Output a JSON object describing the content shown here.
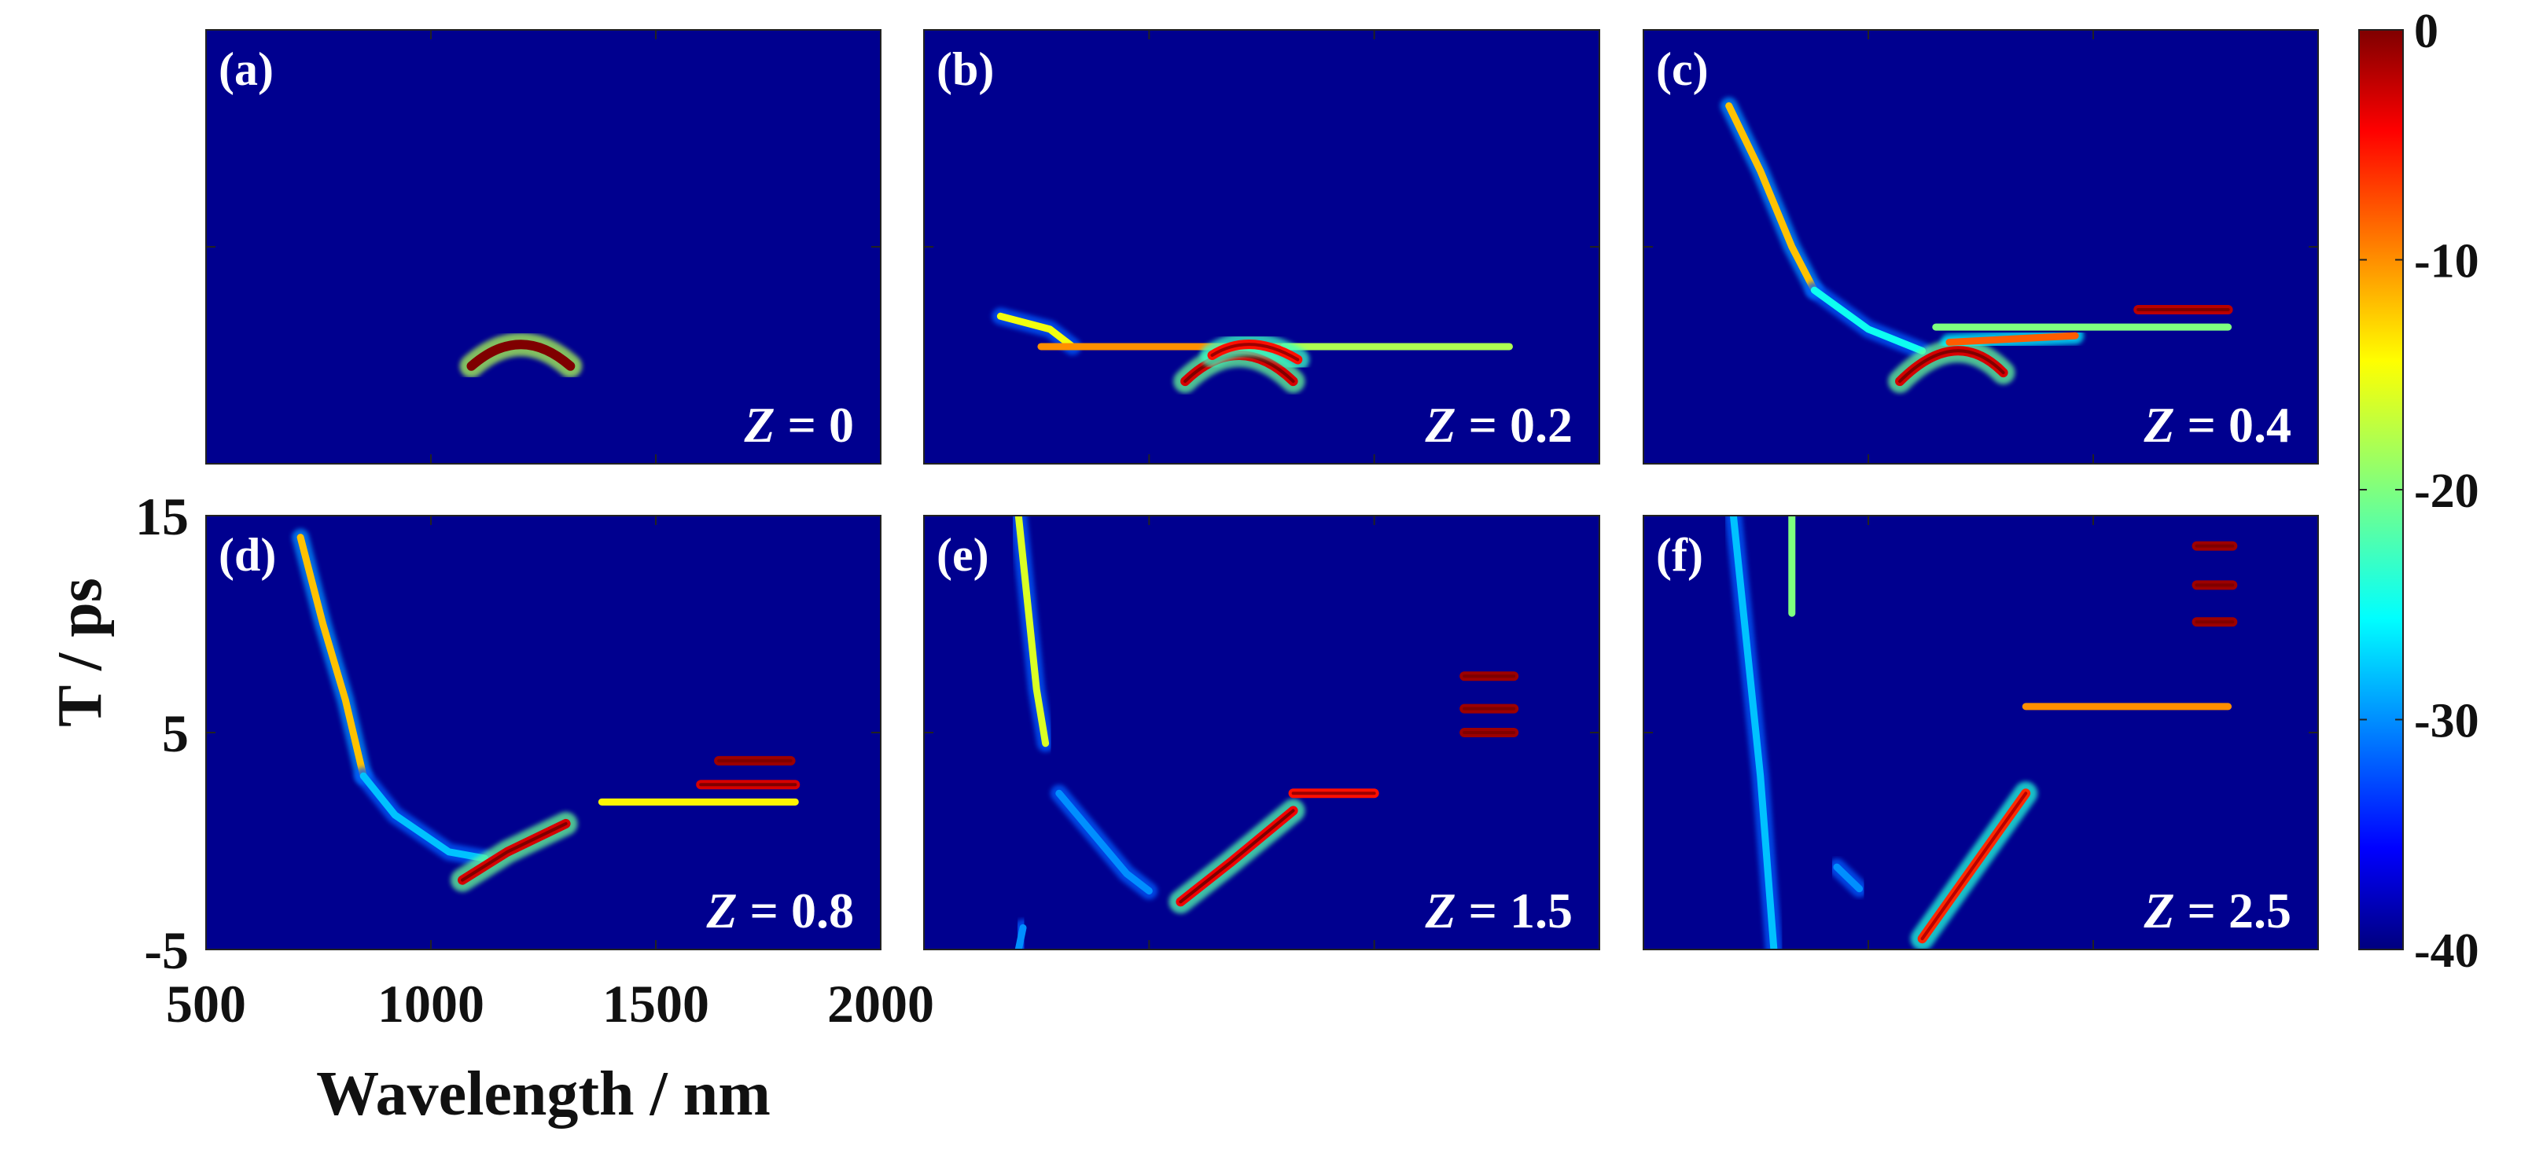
{
  "chart_data": {
    "type": "heatmap",
    "description_level": "spectrogram",
    "xlabel": "Wavelength / nm",
    "ylabel": "T / ps",
    "xlim": [
      500,
      2000
    ],
    "ylim": [
      -5,
      15
    ],
    "xticks": [
      500,
      1000,
      1500,
      2000
    ],
    "yticks": [
      -5,
      5,
      15
    ],
    "xtick_labels": [
      "500",
      "1000",
      "1500",
      "2000"
    ],
    "ytick_labels": [
      "-5",
      "5",
      "15"
    ],
    "colorbar": {
      "range": [
        -40,
        0
      ],
      "ticks": [
        0,
        -10,
        -20,
        -30,
        -40
      ],
      "tick_labels": [
        "0",
        "-10",
        "-20",
        "-30",
        "-40"
      ],
      "colormap": "jet"
    },
    "panels": [
      {
        "label": "(a)",
        "z_prefix": "Z",
        "z_value": "= 0",
        "features": [
          {
            "kind": "arc",
            "points": [
              [
                1090,
                -0.5
              ],
              [
                1200,
                0.5
              ],
              [
                1310,
                -0.5
              ]
            ],
            "level": 0
          }
        ]
      },
      {
        "label": "(b)",
        "z_prefix": "Z",
        "z_value": "= 0.2",
        "features": [
          {
            "kind": "line",
            "points": [
              [
                670,
                1.8
              ],
              [
                780,
                1.2
              ],
              [
                830,
                0.4
              ]
            ],
            "level": -15
          },
          {
            "kind": "line",
            "points": [
              [
                760,
                0.4
              ],
              [
                1300,
                0.4
              ]
            ],
            "level": -10
          },
          {
            "kind": "line",
            "points": [
              [
                1300,
                0.4
              ],
              [
                1800,
                0.4
              ]
            ],
            "level": -18
          },
          {
            "kind": "arc",
            "points": [
              [
                1080,
                -1.2
              ],
              [
                1200,
                0.0
              ],
              [
                1320,
                -1.2
              ]
            ],
            "level": -3
          },
          {
            "kind": "arc",
            "points": [
              [
                1140,
                0.0
              ],
              [
                1230,
                0.5
              ],
              [
                1330,
                -0.2
              ]
            ],
            "level": -5
          }
        ]
      },
      {
        "label": "(c)",
        "z_prefix": "Z",
        "z_value": "= 0.4",
        "features": [
          {
            "kind": "line",
            "points": [
              [
                690,
                11.5
              ],
              [
                760,
                8.5
              ],
              [
                830,
                5.0
              ],
              [
                880,
                3.0
              ]
            ],
            "level": -12
          },
          {
            "kind": "line",
            "points": [
              [
                880,
                3.0
              ],
              [
                1000,
                1.2
              ],
              [
                1120,
                0.2
              ]
            ],
            "level": -25
          },
          {
            "kind": "arc",
            "points": [
              [
                1070,
                -1.2
              ],
              [
                1190,
                0.2
              ],
              [
                1300,
                -0.8
              ]
            ],
            "level": -3
          },
          {
            "kind": "line",
            "points": [
              [
                1180,
                0.6
              ],
              [
                1460,
                0.9
              ]
            ],
            "level": -8
          },
          {
            "kind": "line",
            "points": [
              [
                1150,
                1.3
              ],
              [
                1800,
                1.3
              ]
            ],
            "level": -20
          },
          {
            "kind": "line",
            "points": [
              [
                1600,
                2.1
              ],
              [
                1800,
                2.1
              ]
            ],
            "level": -2
          }
        ]
      },
      {
        "label": "(d)",
        "z_prefix": "Z",
        "z_value": "= 0.8",
        "features": [
          {
            "kind": "line",
            "points": [
              [
                710,
                14.0
              ],
              [
                760,
                10.0
              ],
              [
                810,
                6.5
              ],
              [
                850,
                3.0
              ]
            ],
            "level": -12
          },
          {
            "kind": "line",
            "points": [
              [
                850,
                3.0
              ],
              [
                920,
                1.2
              ],
              [
                1040,
                -0.5
              ],
              [
                1120,
                -0.8
              ]
            ],
            "level": -28
          },
          {
            "kind": "line",
            "points": [
              [
                1070,
                -1.8
              ],
              [
                1170,
                -0.5
              ],
              [
                1300,
                0.8
              ]
            ],
            "level": -3
          },
          {
            "kind": "line",
            "points": [
              [
                1380,
                1.8
              ],
              [
                1810,
                1.8
              ]
            ],
            "level": -14
          },
          {
            "kind": "line",
            "points": [
              [
                1600,
                2.6
              ],
              [
                1810,
                2.6
              ]
            ],
            "level": -3
          },
          {
            "kind": "line",
            "points": [
              [
                1640,
                3.7
              ],
              [
                1800,
                3.7
              ]
            ],
            "level": -1
          }
        ]
      },
      {
        "label": "(e)",
        "z_prefix": "Z",
        "z_value": "= 1.5",
        "features": [
          {
            "kind": "line",
            "points": [
              [
                710,
                15.0
              ],
              [
                730,
                11.0
              ],
              [
                750,
                7.0
              ],
              [
                770,
                4.5
              ]
            ],
            "level": -16
          },
          {
            "kind": "line",
            "points": [
              [
                710,
                -5.0
              ],
              [
                720,
                -4.0
              ]
            ],
            "level": -30
          },
          {
            "kind": "line",
            "points": [
              [
                800,
                2.2
              ],
              [
                950,
                -1.5
              ],
              [
                1000,
                -2.3
              ]
            ],
            "level": -30
          },
          {
            "kind": "line",
            "points": [
              [
                1070,
                -2.8
              ],
              [
                1180,
                -1.0
              ],
              [
                1320,
                1.4
              ]
            ],
            "level": -4
          },
          {
            "kind": "line",
            "points": [
              [
                1320,
                2.2
              ],
              [
                1500,
                2.2
              ]
            ],
            "level": -5
          },
          {
            "kind": "line",
            "points": [
              [
                1700,
                5.0
              ],
              [
                1810,
                5.0
              ]
            ],
            "level": -1
          },
          {
            "kind": "line",
            "points": [
              [
                1700,
                6.1
              ],
              [
                1810,
                6.1
              ]
            ],
            "level": -1
          },
          {
            "kind": "line",
            "points": [
              [
                1700,
                7.6
              ],
              [
                1810,
                7.6
              ]
            ],
            "level": -1
          }
        ]
      },
      {
        "label": "(f)",
        "z_prefix": "Z",
        "z_value": "= 2.5",
        "features": [
          {
            "kind": "line",
            "points": [
              [
                700,
                15.0
              ],
              [
                760,
                3.0
              ],
              [
                790,
                -5.0
              ]
            ],
            "level": -28
          },
          {
            "kind": "line",
            "points": [
              [
                830,
                15.0
              ],
              [
                830,
                10.5
              ]
            ],
            "level": -20
          },
          {
            "kind": "line",
            "points": [
              [
                930,
                -1.2
              ],
              [
                980,
                -2.2
              ]
            ],
            "level": -30
          },
          {
            "kind": "line",
            "points": [
              [
                1120,
                -4.5
              ],
              [
                1240,
                -1.0
              ],
              [
                1350,
                2.2
              ]
            ],
            "level": -6
          },
          {
            "kind": "line",
            "points": [
              [
                1350,
                6.2
              ],
              [
                1800,
                6.2
              ]
            ],
            "level": -10
          },
          {
            "kind": "line",
            "points": [
              [
                1730,
                10.1
              ],
              [
                1810,
                10.1
              ]
            ],
            "level": -1
          },
          {
            "kind": "line",
            "points": [
              [
                1730,
                11.8
              ],
              [
                1810,
                11.8
              ]
            ],
            "level": -1
          },
          {
            "kind": "line",
            "points": [
              [
                1730,
                13.6
              ],
              [
                1810,
                13.6
              ]
            ],
            "level": -1
          }
        ]
      }
    ]
  },
  "colors": {
    "background": "#00008f",
    "frame": "#222222"
  }
}
